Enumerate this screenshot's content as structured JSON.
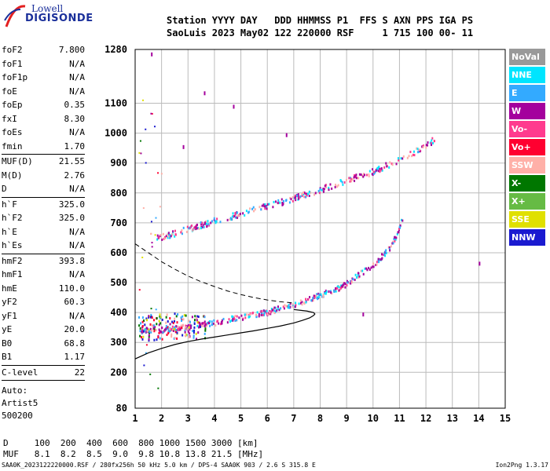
{
  "logo": {
    "line1": "Lowell",
    "line2": "DIGISONDE"
  },
  "header": {
    "line1": "Station YYYY DAY   DDD HHMMSS P1  FFS S AXN PPS IGA PS",
    "line2": "SaoLuis 2023 May02 122 220000 RSF     1 715 100 00- 11"
  },
  "params": {
    "group1": [
      {
        "name": "foF2",
        "value": "7.800"
      },
      {
        "name": "foF1",
        "value": "N/A"
      },
      {
        "name": "foF1p",
        "value": "N/A"
      },
      {
        "name": "foE",
        "value": "N/A"
      },
      {
        "name": "foEp",
        "value": "0.35"
      },
      {
        "name": "fxI",
        "value": "8.30"
      },
      {
        "name": "foEs",
        "value": "N/A"
      },
      {
        "name": "fmin",
        "value": "1.70"
      }
    ],
    "group2": [
      {
        "name": "MUF(D)",
        "value": "21.55"
      },
      {
        "name": "M(D)",
        "value": "2.76"
      },
      {
        "name": "D",
        "value": "N/A"
      }
    ],
    "group3": [
      {
        "name": "h`F",
        "value": "325.0"
      },
      {
        "name": "h`F2",
        "value": "325.0"
      },
      {
        "name": "h`E",
        "value": "N/A"
      },
      {
        "name": "h`Es",
        "value": "N/A"
      }
    ],
    "group4": [
      {
        "name": "hmF2",
        "value": "393.8"
      },
      {
        "name": "hmF1",
        "value": "N/A"
      },
      {
        "name": "hmE",
        "value": "110.0"
      },
      {
        "name": "yF2",
        "value": "60.3"
      },
      {
        "name": "yF1",
        "value": "N/A"
      },
      {
        "name": "yE",
        "value": "20.0"
      },
      {
        "name": "B0",
        "value": "68.8"
      },
      {
        "name": "B1",
        "value": "1.17"
      }
    ],
    "group5": [
      {
        "name": "C-level",
        "value": "22"
      }
    ],
    "notes": [
      "Auto:",
      "Artist5",
      "500200"
    ]
  },
  "legend": [
    {
      "label": "NoVal",
      "color": "#999999"
    },
    {
      "label": "NNE",
      "color": "#00e5ff"
    },
    {
      "label": "E",
      "color": "#33aaff"
    },
    {
      "label": "W",
      "color": "#a4009d"
    },
    {
      "label": "Vo-",
      "color": "#ff3b8e"
    },
    {
      "label": "Vo+",
      "color": "#ff0030"
    },
    {
      "label": "SSW",
      "color": "#ffb0a8"
    },
    {
      "label": "X-",
      "color": "#007700"
    },
    {
      "label": "X+",
      "color": "#66bb44"
    },
    {
      "label": "SSE",
      "color": "#e0e000"
    },
    {
      "label": "NNW",
      "color": "#1a1ad0"
    }
  ],
  "muf_table": {
    "row1": "D     100  200  400  600  800 1000 1500 3000 [km]",
    "row2": "MUF   8.1  8.2  8.5  9.0  9.8 10.8 13.8 21.5 [MHz]"
  },
  "footer": {
    "left": "SAA0K_2023122220000.RSF / 280fx256h 50 kHz 5.0 km / DPS-4 SAA0K 903 / 2.6 S 315.8 E",
    "right": "Ion2Png 1.3.17"
  },
  "chart_data": {
    "type": "scatter",
    "xlim": [
      1,
      15
    ],
    "ylim": [
      80,
      1280
    ],
    "x_ticks": [
      1,
      2,
      3,
      4,
      5,
      6,
      7,
      8,
      9,
      10,
      11,
      12,
      13,
      14,
      15
    ],
    "y_ticks": [
      80,
      200,
      300,
      400,
      500,
      600,
      700,
      800,
      900,
      1000,
      1100,
      1280
    ],
    "grid": true,
    "profile_curve": {
      "x": [
        1.0,
        1.5,
        2.0,
        2.5,
        3.0,
        3.5,
        4.0,
        4.5,
        5.0,
        5.5,
        6.0,
        6.5,
        7.0,
        7.3,
        7.6,
        7.75,
        7.8,
        7.75,
        7.5,
        7.0
      ],
      "y": [
        245,
        265,
        280,
        293,
        303,
        311,
        318,
        325,
        332,
        339,
        347,
        355,
        365,
        373,
        382,
        390,
        395,
        400,
        405,
        410
      ]
    },
    "topside_curve": {
      "x": [
        1.0,
        1.5,
        2.0,
        2.5,
        3.0,
        3.5,
        4.0,
        4.5,
        5.0,
        5.5,
        6.0,
        6.5,
        7.0
      ],
      "y": [
        630,
        600,
        570,
        545,
        522,
        503,
        487,
        472,
        460,
        450,
        442,
        436,
        432
      ]
    },
    "o_trace": {
      "x": [
        1.2,
        1.5,
        1.8,
        2.0,
        2.3,
        2.6,
        3.0,
        3.3,
        3.6,
        4.0,
        4.5,
        5.0,
        5.5,
        6.0,
        6.5,
        7.0,
        7.5,
        8.0,
        8.5,
        8.8,
        9.0,
        9.3,
        9.6,
        10.0,
        10.3,
        10.6,
        10.8,
        11.0,
        11.1
      ],
      "y": [
        340,
        345,
        350,
        345,
        348,
        352,
        355,
        360,
        365,
        370,
        380,
        388,
        396,
        405,
        418,
        430,
        445,
        462,
        478,
        490,
        500,
        520,
        540,
        560,
        590,
        620,
        650,
        690,
        725
      ]
    },
    "second_trace": {
      "x": [
        1.8,
        2.2,
        2.6,
        3.0,
        3.5,
        4.0,
        4.5,
        5.0,
        5.5,
        6.0,
        6.5,
        7.0,
        7.5,
        8.0,
        8.5,
        9.0,
        9.5,
        10.0,
        10.5,
        11.0,
        11.5,
        12.0,
        12.3
      ],
      "y": [
        652,
        660,
        672,
        683,
        697,
        710,
        722,
        735,
        748,
        760,
        772,
        785,
        800,
        815,
        830,
        845,
        860,
        875,
        895,
        915,
        938,
        960,
        985
      ]
    },
    "isolated_points": [
      {
        "x": 14.0,
        "y": 570
      },
      {
        "x": 3.6,
        "y": 1140
      },
      {
        "x": 4.7,
        "y": 1095
      },
      {
        "x": 2.8,
        "y": 960
      },
      {
        "x": 1.6,
        "y": 1270
      },
      {
        "x": 9.6,
        "y": 400
      },
      {
        "x": 6.7,
        "y": 1000
      }
    ]
  }
}
